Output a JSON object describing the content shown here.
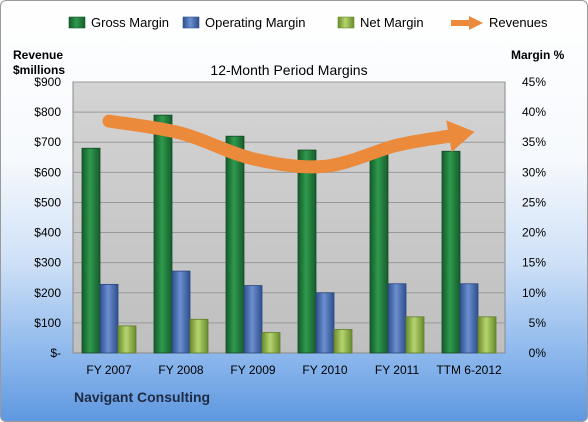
{
  "footer": {
    "company": "Navigant Consulting"
  },
  "colors": {
    "gross_margin": "#1f7a3a",
    "operating_margin": "#4a6eb0",
    "net_margin": "#8db04a",
    "revenues": "#ec8a3c",
    "plot_background": "#c8c8c8"
  },
  "chart_data": {
    "type": "bar",
    "title": "12-Month Period Margins",
    "categories": [
      "FY 2007",
      "FY 2008",
      "FY 2009",
      "FY 2010",
      "FY 2011",
      "TTM 6-2012"
    ],
    "series": [
      {
        "name": "Gross Margin",
        "values": [
          34.0,
          39.5,
          36.0,
          33.7,
          33.4,
          33.5
        ]
      },
      {
        "name": "Operating Margin",
        "values": [
          11.4,
          13.6,
          11.2,
          10.0,
          11.5,
          11.5
        ]
      },
      {
        "name": "Net Margin",
        "values": [
          4.5,
          5.6,
          3.4,
          3.9,
          6.0,
          6.0
        ]
      },
      {
        "name": "Revenues",
        "type": "line",
        "axis": "left",
        "values": [
          770,
          730,
          645,
          620,
          690,
          720
        ]
      }
    ],
    "y_left": {
      "label_line1": "Revenue",
      "label_line2": "$millions",
      "range": [
        0,
        900
      ],
      "ticks": [
        "$-",
        "$100",
        "$200",
        "$300",
        "$400",
        "$500",
        "$600",
        "$700",
        "$800",
        "$900"
      ]
    },
    "y_right": {
      "label": "Margin %",
      "range": [
        0,
        45
      ],
      "ticks": [
        "0%",
        "5%",
        "10%",
        "15%",
        "20%",
        "25%",
        "30%",
        "35%",
        "40%",
        "45%"
      ]
    },
    "grid": true,
    "legend": "top"
  }
}
